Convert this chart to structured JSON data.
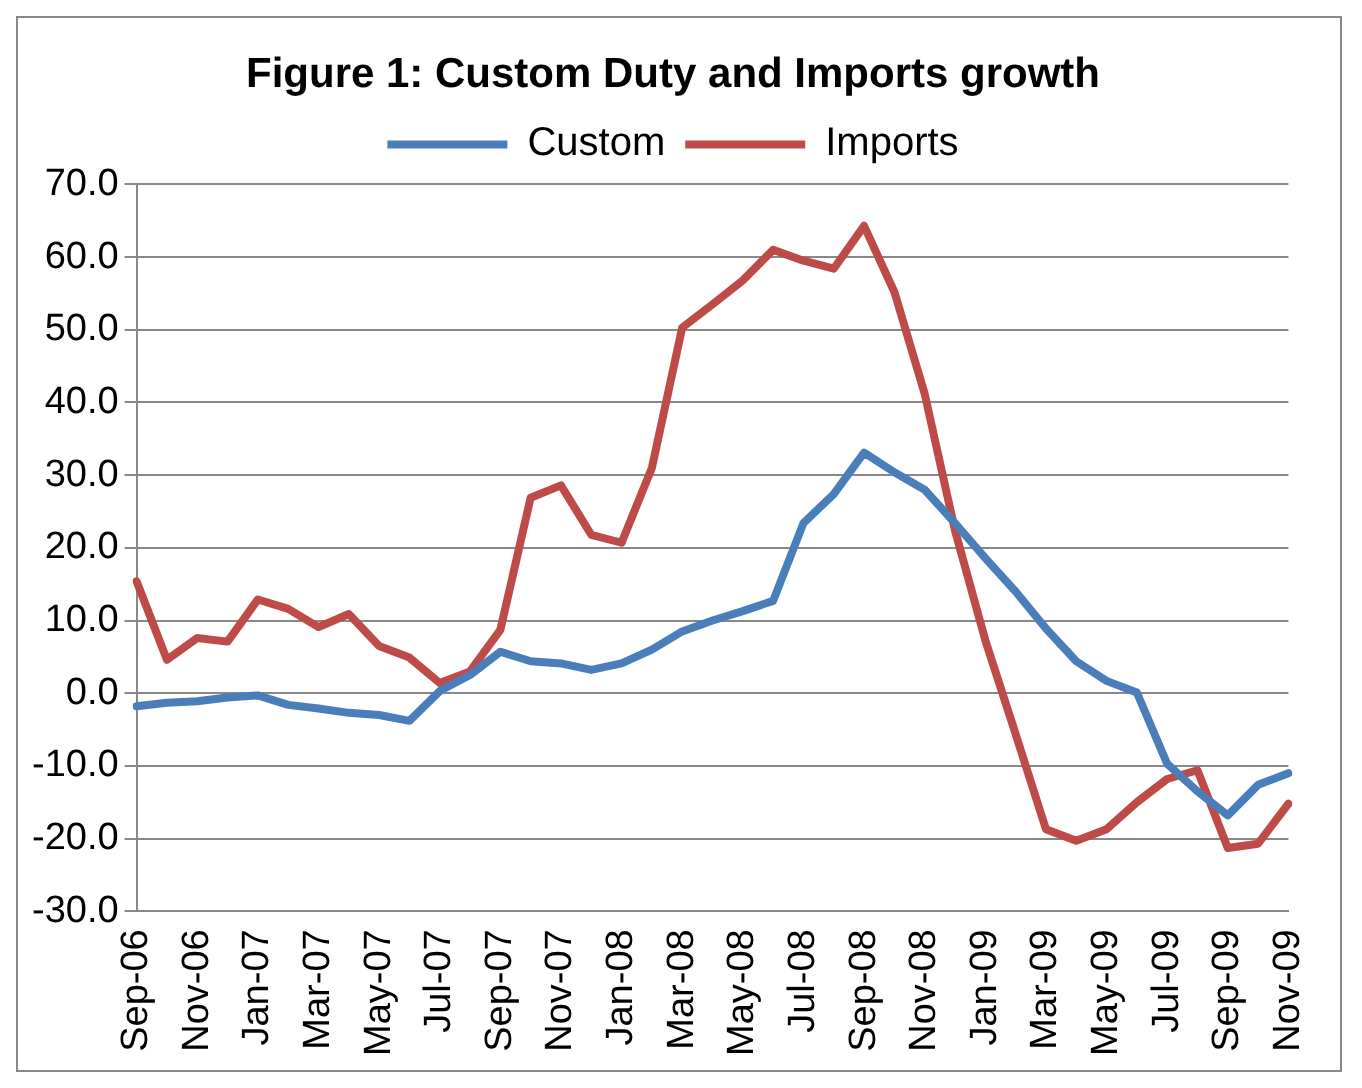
{
  "chart_data": {
    "type": "line",
    "title": "Figure 1: Custom Duty and Imports growth",
    "categories": [
      "Sep-06",
      null,
      "Nov-06",
      null,
      "Jan-07",
      null,
      "Mar-07",
      null,
      "May-07",
      null,
      "Jul-07",
      null,
      "Sep-07",
      null,
      "Nov-07",
      null,
      "Jan-08",
      null,
      "Mar-08",
      null,
      "May-08",
      null,
      "Jul-08",
      null,
      "Sep-08",
      null,
      "Nov-08",
      null,
      "Jan-09",
      null,
      "Mar-09",
      null,
      "May-09",
      null,
      "Jul-09",
      null,
      "Sep-09",
      null,
      "Nov-09"
    ],
    "series": [
      {
        "name": "Custom",
        "color": "#4a7ebb",
        "values": [
          -1.8,
          -1.3,
          -1.1,
          -0.6,
          -0.3,
          -1.6,
          -2.1,
          -2.7,
          -3.0,
          -3.8,
          0.3,
          2.5,
          5.7,
          4.4,
          4.1,
          3.2,
          4.1,
          6.0,
          8.5,
          10.0,
          11.3,
          12.7,
          23.4,
          27.4,
          33.1,
          30.4,
          28.0,
          23.4,
          18.6,
          14.0,
          8.9,
          4.4,
          1.7,
          0.1,
          -9.7,
          -13.5,
          -16.8,
          -12.6,
          -11.0
        ]
      },
      {
        "name": "Imports",
        "color": "#be4b48",
        "values": [
          15.4,
          4.6,
          7.6,
          7.1,
          12.9,
          11.6,
          9.1,
          10.9,
          6.5,
          4.9,
          1.4,
          3.0,
          8.7,
          26.9,
          28.6,
          21.8,
          20.7,
          31.0,
          50.3,
          53.5,
          56.8,
          61.0,
          59.5,
          58.4,
          64.3,
          55.2,
          41.2,
          22.4,
          7.3,
          -5.6,
          -18.7,
          -20.3,
          -18.7,
          -15.0,
          -11.8,
          -10.6,
          -21.3,
          -20.7,
          -15.2
        ]
      }
    ],
    "ylim": [
      -30,
      70
    ],
    "yticks": [
      {
        "value": -30,
        "label": "-30.0"
      },
      {
        "value": -20,
        "label": "-20.0"
      },
      {
        "value": -10,
        "label": "-10.0"
      },
      {
        "value": 0,
        "label": "0.0"
      },
      {
        "value": 10,
        "label": "10.0"
      },
      {
        "value": 20,
        "label": "20.0"
      },
      {
        "value": 30,
        "label": "30.0"
      },
      {
        "value": 40,
        "label": "40.0"
      },
      {
        "value": 50,
        "label": "50.0"
      },
      {
        "value": 60,
        "label": "60.0"
      },
      {
        "value": 70,
        "label": "70.0"
      }
    ],
    "grid": "y",
    "legend": "top",
    "marker": "none",
    "line_style": "solid"
  }
}
